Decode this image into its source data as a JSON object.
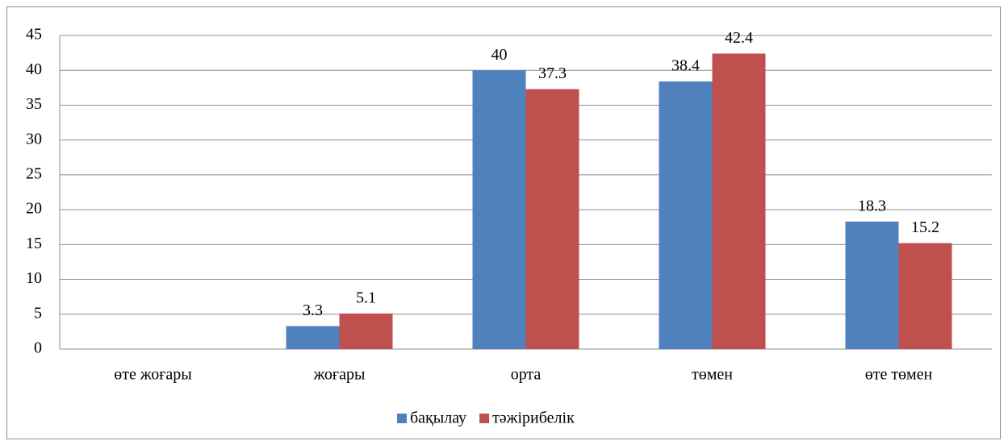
{
  "chart_data": {
    "type": "bar",
    "categories": [
      "өте жоғары",
      "жоғары",
      "орта",
      "төмен",
      "өте төмен"
    ],
    "series": [
      {
        "name": "бақылау",
        "color": "#4f81bd",
        "values": [
          null,
          3.3,
          40,
          38.4,
          18.3
        ]
      },
      {
        "name": "тәжірибелік",
        "color": "#c0504d",
        "values": [
          null,
          5.1,
          37.3,
          42.4,
          15.2
        ]
      }
    ],
    "ylim": [
      0,
      45
    ],
    "yticks": [
      0,
      5,
      10,
      15,
      20,
      25,
      30,
      35,
      40,
      45
    ],
    "grid": true,
    "legend": "bottom"
  }
}
